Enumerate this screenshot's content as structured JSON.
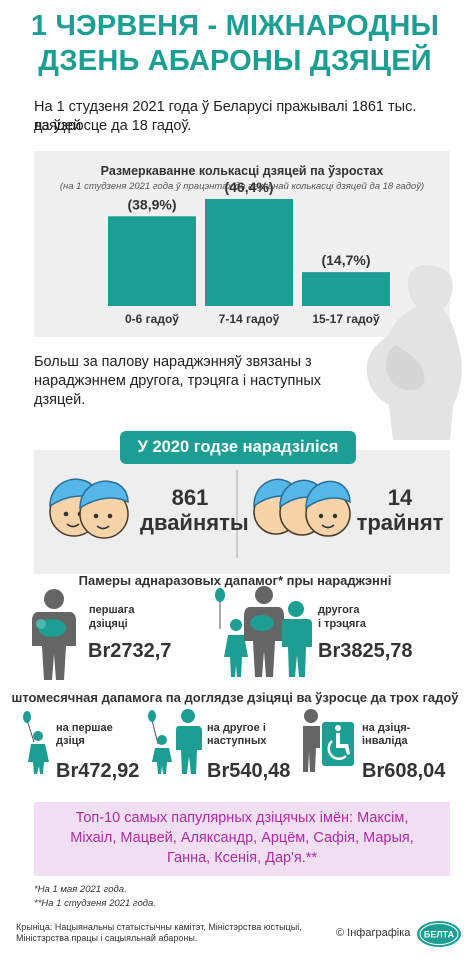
{
  "header": {
    "title_line1": "1 ЧЭРВЕНЯ - МІЖНАРОДНЫ",
    "title_line2": "ДЗЕНЬ АБАРОНЫ ДЗЯЦЕЙ",
    "intro_line1": "На 1 студзеня 2021 года ў Беларусі пражывалі 1861 тыс. дзяцей",
    "intro_line2": "ва ўзросце да 18 гадоў."
  },
  "chart_data": {
    "type": "bar",
    "title": "Размеркаванне колькасці дзяцей па ўзростах",
    "subtitle": "(на 1 студзеня 2021 года ў працэнтах да агульнай колькасці дзяцей да 18 гадоў)",
    "categories": [
      "0-6 гадоў",
      "7-14 гадоў",
      "15-17 гадоў"
    ],
    "values": [
      38.9,
      46.4,
      14.7
    ],
    "value_labels": [
      "(38,9%)",
      "(46,4%)",
      "(14,7%)"
    ],
    "color": "#1d9e93"
  },
  "pregnancy": {
    "line1": "Больш за палову нараджэнняў звязаны з",
    "line2": "нараджэннем другога, трэцяга і наступных",
    "line3": "дзяцей."
  },
  "births": {
    "banner": "У 2020 годзе нарадзіліся",
    "twins_count": "861",
    "twins_label": "двайняты",
    "triplets_count": "14",
    "triplets_label": "трайнят"
  },
  "one_time": {
    "title": "Памеры аднаразовых дапамог* пры нараджэнні",
    "first_label_1": "першага",
    "first_label_2": "дзіцяці",
    "first_amount": "Br2732,7",
    "second_label_1": "другога",
    "second_label_2": "і трэцяга",
    "second_amount": "Br3825,78"
  },
  "monthly": {
    "title": "штомесячная дапамога па доглядзе дзіцяці ва ўзросце да трох гадоў",
    "first_label_1": "на першае",
    "first_label_2": "дзіця",
    "first_amount": "Br472,92",
    "second_label_1": "на другое і",
    "second_label_2": "наступных",
    "second_amount": "Br540,48",
    "disabled_label_1": "на дзіця-",
    "disabled_label_2": "інваліда",
    "disabled_amount": "Br608,04"
  },
  "names": {
    "line1": "Топ-10 самых папулярных дзіцячых імён: Максім,",
    "line2": "Міхаіл, Мацвей, Аляксандр, Арцём, Сафія, Марыя,",
    "line3": "Ганна, Ксенія, Дар'я.**"
  },
  "footer": {
    "note1": "*На 1 мая 2021 года.",
    "note2": "**На 1 студзеня 2021 года.",
    "source_line1": "Крыніца: Нацыянальны статыстычны камітэт, Міністэрства юстыцыі,",
    "source_line2": "Міністэрства працы і сацыяльнай абароны.",
    "credit": "© Інфаграфіка",
    "logo_text": "БЕЛТА"
  }
}
